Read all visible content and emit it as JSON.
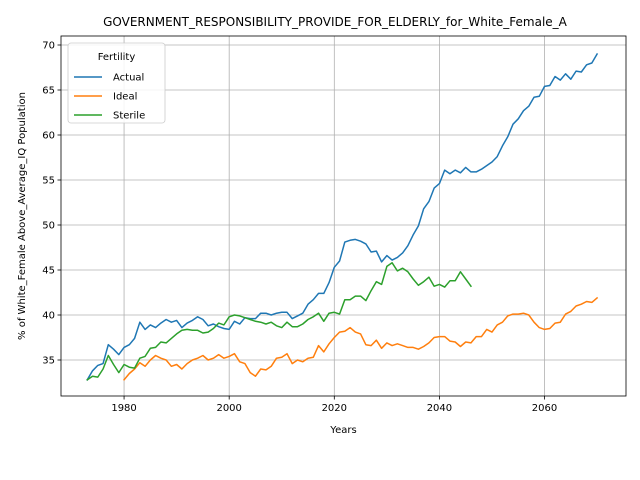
{
  "chart_data": {
    "type": "line",
    "title": "GOVERNMENT_RESPONSIBILITY_PROVIDE_FOR_ELDERLY_for_White_Female_A",
    "xlabel": "Years",
    "ylabel": "% of White_Female Above_Average_IQ Population",
    "xlim": [
      1968,
      2075.5
    ],
    "ylim": [
      31.0,
      71.0
    ],
    "xticks": [
      1980,
      2000,
      2020,
      2040,
      2060
    ],
    "yticks": [
      35,
      40,
      45,
      50,
      55,
      60,
      65,
      70
    ],
    "grid": true,
    "legend": {
      "title": "Fertility",
      "placement": "top-left"
    },
    "series": [
      {
        "name": "Actual",
        "color": "#1f77b4",
        "x": [
          1973,
          1974,
          1975,
          1976,
          1977,
          1978,
          1979,
          1980,
          1981,
          1982,
          1983,
          1984,
          1985,
          1986,
          1987,
          1988,
          1989,
          1990,
          1991,
          1992,
          1993,
          1994,
          1995,
          1996,
          1997,
          1998,
          1999,
          2000,
          2001,
          2002,
          2003,
          2004,
          2005,
          2006,
          2007,
          2008,
          2009,
          2010,
          2011,
          2012,
          2013,
          2014,
          2015,
          2016,
          2017,
          2018,
          2019,
          2020,
          2021,
          2022,
          2023,
          2024,
          2025,
          2026,
          2027,
          2028,
          2029,
          2030,
          2031,
          2032,
          2033,
          2034,
          2035,
          2036,
          2037,
          2038,
          2039,
          2040,
          2041,
          2042,
          2043,
          2044,
          2045,
          2046,
          2047,
          2048,
          2049,
          2050,
          2051,
          2052,
          2053,
          2054,
          2055,
          2056,
          2057,
          2058,
          2059,
          2060,
          2061,
          2062,
          2063,
          2064,
          2065,
          2066,
          2067,
          2068,
          2069,
          2070
        ],
        "y": [
          32.8,
          33.8,
          34.4,
          34.6,
          36.7,
          36.2,
          35.6,
          36.4,
          36.7,
          37.4,
          39.2,
          38.4,
          38.9,
          38.6,
          39.1,
          39.5,
          39.2,
          39.4,
          38.6,
          39.1,
          39.4,
          39.8,
          39.5,
          38.8,
          39.0,
          38.7,
          38.5,
          38.4,
          39.3,
          39.0,
          39.7,
          39.6,
          39.6,
          40.2,
          40.2,
          40.0,
          40.2,
          40.3,
          40.3,
          39.6,
          39.9,
          40.2,
          41.2,
          41.7,
          42.4,
          42.4,
          43.6,
          45.3,
          46.0,
          48.1,
          48.3,
          48.4,
          48.2,
          47.9,
          47.0,
          47.1,
          45.9,
          46.6,
          46.1,
          46.4,
          46.9,
          47.7,
          48.9,
          49.9,
          51.8,
          52.6,
          54.1,
          54.6,
          56.1,
          55.7,
          56.1,
          55.8,
          56.4,
          55.9,
          55.9,
          56.2,
          56.6,
          57.0,
          57.6,
          58.8,
          59.8,
          61.2,
          61.8,
          62.7,
          63.2,
          64.2,
          64.3,
          65.4,
          65.5,
          66.5,
          66.1,
          66.8,
          66.2,
          67.1,
          67.0,
          67.8,
          68.0,
          69.0
        ]
      },
      {
        "name": "Ideal",
        "color": "#ff7f0e",
        "x": [
          1980,
          1981,
          1982,
          1983,
          1984,
          1985,
          1986,
          1987,
          1988,
          1989,
          1990,
          1991,
          1992,
          1993,
          1994,
          1995,
          1996,
          1997,
          1998,
          1999,
          2000,
          2001,
          2002,
          2003,
          2004,
          2005,
          2006,
          2007,
          2008,
          2009,
          2010,
          2011,
          2012,
          2013,
          2014,
          2015,
          2016,
          2017,
          2018,
          2019,
          2020,
          2021,
          2022,
          2023,
          2024,
          2025,
          2026,
          2027,
          2028,
          2029,
          2030,
          2031,
          2032,
          2033,
          2034,
          2035,
          2036,
          2037,
          2038,
          2039,
          2040,
          2041,
          2042,
          2043,
          2044,
          2045,
          2046,
          2047,
          2048,
          2049,
          2050,
          2051,
          2052,
          2053,
          2054,
          2055,
          2056,
          2057,
          2058,
          2059,
          2060,
          2061,
          2062,
          2063,
          2064,
          2065,
          2066,
          2067,
          2068,
          2069,
          2070
        ],
        "y": [
          32.8,
          33.5,
          34.0,
          34.7,
          34.3,
          35.0,
          35.5,
          35.2,
          35.0,
          34.3,
          34.5,
          34.0,
          34.6,
          35.0,
          35.2,
          35.5,
          35.0,
          35.2,
          35.6,
          35.2,
          35.4,
          35.7,
          34.8,
          34.6,
          33.6,
          33.2,
          34.0,
          33.9,
          34.3,
          35.2,
          35.3,
          35.7,
          34.6,
          35.0,
          34.8,
          35.2,
          35.3,
          36.6,
          35.9,
          36.8,
          37.5,
          38.1,
          38.2,
          38.6,
          38.1,
          37.9,
          36.7,
          36.6,
          37.2,
          36.3,
          36.9,
          36.6,
          36.8,
          36.6,
          36.4,
          36.4,
          36.2,
          36.5,
          36.9,
          37.5,
          37.6,
          37.6,
          37.1,
          37.0,
          36.5,
          37.0,
          36.9,
          37.6,
          37.6,
          38.4,
          38.1,
          38.9,
          39.2,
          39.9,
          40.1,
          40.1,
          40.2,
          40.0,
          39.2,
          38.6,
          38.4,
          38.5,
          39.1,
          39.2,
          40.1,
          40.4,
          41.0,
          41.2,
          41.5,
          41.4,
          41.9
        ]
      },
      {
        "name": "Sterile",
        "color": "#2ca02c",
        "x": [
          1973,
          1974,
          1975,
          1976,
          1977,
          1978,
          1979,
          1980,
          1981,
          1982,
          1983,
          1984,
          1985,
          1986,
          1987,
          1988,
          1989,
          1990,
          1991,
          1992,
          1993,
          1994,
          1995,
          1996,
          1997,
          1998,
          1999,
          2000,
          2001,
          2002,
          2003,
          2004,
          2005,
          2006,
          2007,
          2008,
          2009,
          2010,
          2011,
          2012,
          2013,
          2014,
          2015,
          2016,
          2017,
          2018,
          2019,
          2020,
          2021,
          2022,
          2023,
          2024,
          2025,
          2026,
          2027,
          2028,
          2029,
          2030,
          2031,
          2032,
          2033,
          2034,
          2035,
          2036,
          2037,
          2038,
          2039,
          2040,
          2041,
          2042,
          2043,
          2044,
          2045,
          2046
        ],
        "y": [
          32.8,
          33.2,
          33.1,
          34.0,
          35.5,
          34.5,
          33.6,
          34.5,
          34.2,
          34.1,
          35.2,
          35.4,
          36.3,
          36.4,
          37.0,
          36.9,
          37.4,
          37.9,
          38.3,
          38.4,
          38.3,
          38.3,
          38.0,
          38.1,
          38.5,
          39.1,
          38.9,
          39.8,
          40.0,
          39.9,
          39.7,
          39.5,
          39.3,
          39.2,
          39.0,
          39.2,
          38.8,
          38.6,
          39.2,
          38.7,
          38.7,
          39.0,
          39.5,
          39.8,
          40.2,
          39.3,
          40.2,
          40.3,
          40.1,
          41.7,
          41.7,
          42.1,
          42.1,
          41.6,
          42.7,
          43.7,
          43.4,
          45.4,
          45.8,
          44.9,
          45.2,
          44.8,
          44.0,
          43.3,
          43.7,
          44.2,
          43.2,
          43.4,
          43.1,
          43.8,
          43.8,
          44.8,
          44.0,
          43.2
        ]
      }
    ]
  }
}
